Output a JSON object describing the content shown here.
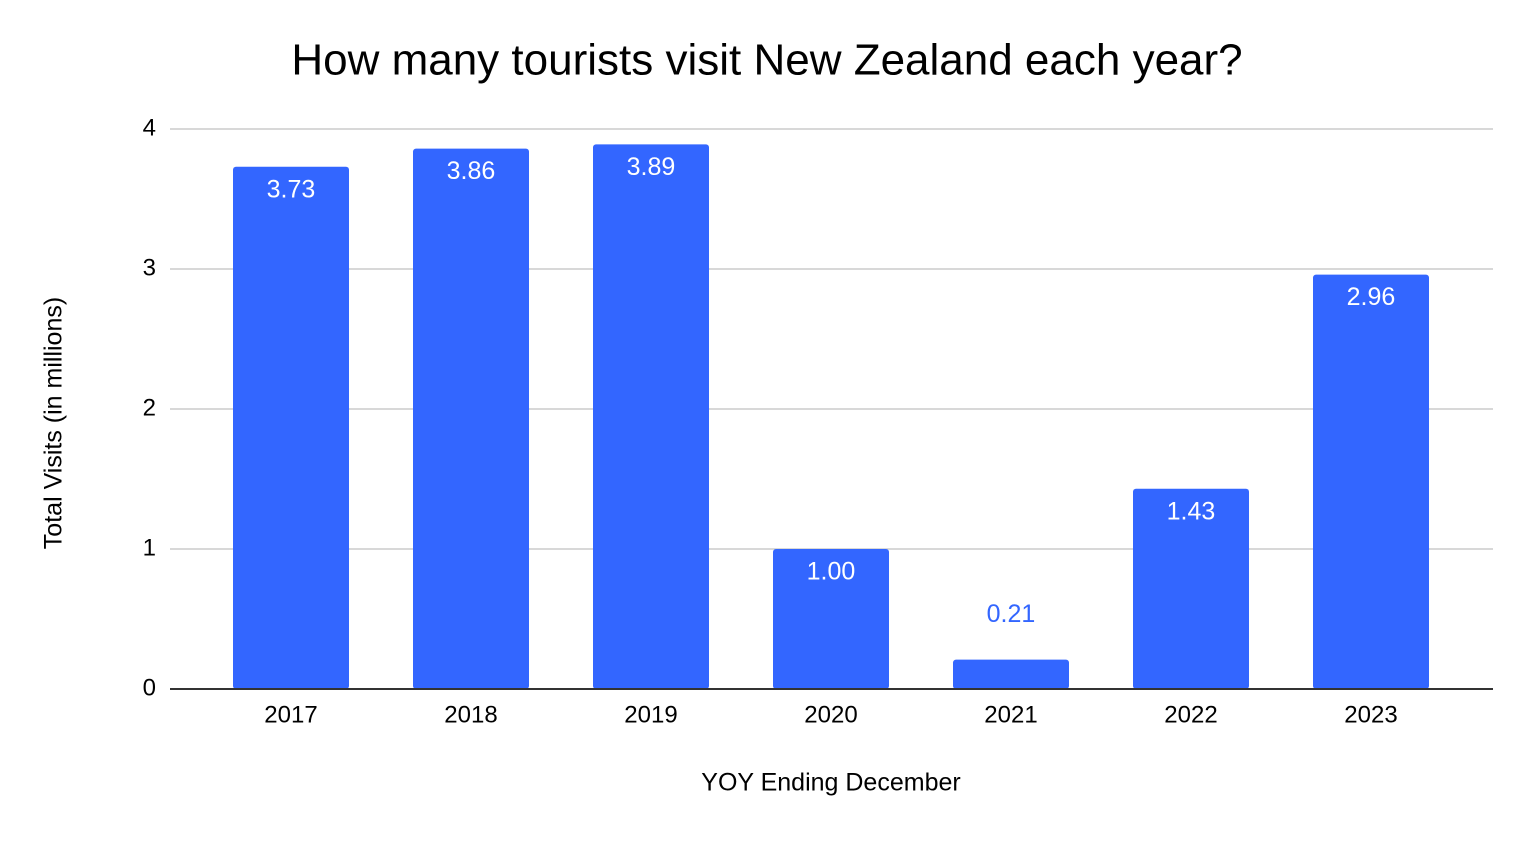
{
  "chart_data": {
    "type": "bar",
    "title": "How many tourists visit New Zealand each year?",
    "x_label": "YOY Ending December",
    "y_label": "Total Visits (in millions)",
    "categories": [
      "2017",
      "2018",
      "2019",
      "2020",
      "2021",
      "2022",
      "2023"
    ],
    "values": [
      3.73,
      3.86,
      3.89,
      1,
      0.21,
      1.43,
      2.96
    ],
    "value_labels": [
      "3.73",
      "3.86",
      "3.89",
      "1.00",
      "0.21",
      "1.43",
      "2.96"
    ],
    "color": "#3366ff",
    "ylim": [
      0,
      4
    ],
    "yticks": [
      0,
      1,
      2,
      3,
      4
    ],
    "grid": true
  }
}
